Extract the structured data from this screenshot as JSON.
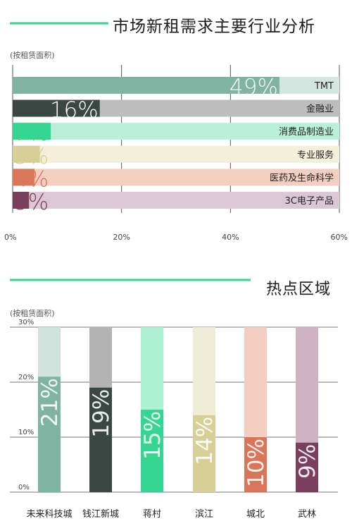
{
  "charts_title_1": "市场新租需求主要行业分析",
  "charts_title_2": "热点区域",
  "unit_1": "(按租赁面积)",
  "unit_2": "(按租赁面积)",
  "chart_data": [
    {
      "type": "bar",
      "orientation": "horizontal",
      "title": "市场新租需求主要行业分析",
      "subtitle": "(按租赁面积)",
      "categories": [
        "TMT",
        "金融业",
        "消费品制造业",
        "专业服务",
        "医药及生命科学",
        "3C电子产品"
      ],
      "values": [
        49,
        16,
        7,
        5,
        4,
        3
      ],
      "value_labels": [
        "49%",
        "16%",
        "7%",
        "5%",
        "4%",
        "3%"
      ],
      "xlim": [
        0,
        60
      ],
      "xticks": [
        "0%",
        "20%",
        "40%",
        "60%"
      ],
      "grid": true,
      "colors": [
        {
          "fill": "#7fb4a3",
          "track": "#d4e6e0"
        },
        {
          "fill": "#3b4743",
          "track": "#bdbdbd"
        },
        {
          "fill": "#35d692",
          "track": "#b9f0d6"
        },
        {
          "fill": "#d8cf96",
          "track": "#f3efda"
        },
        {
          "fill": "#d9765a",
          "track": "#f3cfc2"
        },
        {
          "fill": "#7a3f5e",
          "track": "#dcc7d4"
        }
      ]
    },
    {
      "type": "bar",
      "orientation": "vertical",
      "title": "热点区域",
      "subtitle": "(按租赁面积)",
      "categories": [
        "未来科技城",
        "钱江新城",
        "蒋村",
        "滨江",
        "城北",
        "武林"
      ],
      "values": [
        21,
        19,
        15,
        14,
        10,
        9
      ],
      "value_labels": [
        "21%",
        "19%",
        "15%",
        "14%",
        "10%",
        "9%"
      ],
      "ylim": [
        0,
        30
      ],
      "yticks": [
        "0%",
        "10%",
        "20%",
        "30%"
      ],
      "grid": true,
      "colors": [
        {
          "fill": "#7fb4a3",
          "track": "#cfe3dc"
        },
        {
          "fill": "#3b4743",
          "track": "#b3b3b3"
        },
        {
          "fill": "#35d692",
          "track": "#aef0d2"
        },
        {
          "fill": "#d8cf96",
          "track": "#f0ecd6"
        },
        {
          "fill": "#d9765a",
          "track": "#f3cdbf"
        },
        {
          "fill": "#7a3f5e",
          "track": "#cfb3c3"
        }
      ]
    }
  ],
  "accent_color": "#35d692"
}
